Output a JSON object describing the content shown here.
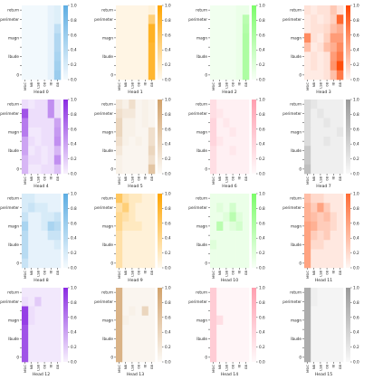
{
  "chart_data": {
    "type": "heatmap",
    "row_labels": [
      "return",
      "perimeter",
      "",
      "magn",
      "",
      "Ibude",
      "",
      "0"
    ],
    "col_labels": [
      "MSIC",
      "NB",
      "LSB",
      "0B",
      "IB",
      "GB"
    ],
    "colorbar_ticks": [
      "0.0",
      "0.2",
      "0.4",
      "0.6",
      "0.8",
      "1.0"
    ],
    "vmin": 0.0,
    "vmax": 1.0,
    "panels": [
      {
        "title": "Head 0",
        "color": "#5DADE2",
        "values": [
          [
            0.02,
            0.02,
            0.02,
            0.02,
            0.1,
            0.15
          ],
          [
            0.02,
            0.02,
            0.02,
            0.02,
            0.1,
            0.15
          ],
          [
            0.02,
            0.02,
            0.02,
            0.02,
            0.1,
            0.35
          ],
          [
            0.02,
            0.02,
            0.02,
            0.02,
            0.1,
            0.45
          ],
          [
            0.02,
            0.02,
            0.02,
            0.02,
            0.1,
            0.45
          ],
          [
            0.02,
            0.02,
            0.02,
            0.02,
            0.1,
            0.5
          ],
          [
            0.02,
            0.02,
            0.02,
            0.02,
            0.1,
            0.55
          ],
          [
            0.02,
            0.02,
            0.02,
            0.02,
            0.1,
            0.6
          ]
        ]
      },
      {
        "title": "Head 1",
        "color": "#FFA500",
        "values": [
          [
            0.05,
            0.05,
            0.05,
            0.05,
            0.05,
            0.1
          ],
          [
            0.05,
            0.05,
            0.05,
            0.05,
            0.05,
            0.5
          ],
          [
            0.05,
            0.05,
            0.05,
            0.05,
            0.05,
            0.85
          ],
          [
            0.05,
            0.05,
            0.05,
            0.05,
            0.05,
            0.85
          ],
          [
            0.05,
            0.05,
            0.05,
            0.05,
            0.05,
            0.8
          ],
          [
            0.05,
            0.05,
            0.05,
            0.05,
            0.05,
            0.8
          ],
          [
            0.05,
            0.05,
            0.05,
            0.05,
            0.05,
            0.8
          ],
          [
            0.05,
            0.05,
            0.05,
            0.05,
            0.05,
            0.8
          ]
        ]
      },
      {
        "title": "Head 2",
        "color": "#7CFC6A",
        "values": [
          [
            0.05,
            0.05,
            0.05,
            0.05,
            0.1,
            0.1
          ],
          [
            0.05,
            0.05,
            0.05,
            0.05,
            0.1,
            0.5
          ],
          [
            0.05,
            0.05,
            0.05,
            0.05,
            0.1,
            0.55
          ],
          [
            0.05,
            0.05,
            0.05,
            0.05,
            0.1,
            0.6
          ],
          [
            0.05,
            0.05,
            0.05,
            0.05,
            0.1,
            0.6
          ],
          [
            0.05,
            0.05,
            0.05,
            0.05,
            0.1,
            0.6
          ],
          [
            0.05,
            0.05,
            0.05,
            0.05,
            0.1,
            0.6
          ],
          [
            0.05,
            0.05,
            0.05,
            0.05,
            0.1,
            0.6
          ]
        ]
      },
      {
        "title": "Head 3",
        "color": "#FF4500",
        "values": [
          [
            0.1,
            0.05,
            0.1,
            0.1,
            0.25,
            0.1
          ],
          [
            0.05,
            0.1,
            0.05,
            0.1,
            0.2,
            0.8
          ],
          [
            0.05,
            0.1,
            0.1,
            0.15,
            0.3,
            0.4
          ],
          [
            0.6,
            0.1,
            0.05,
            0.2,
            0.5,
            0.5
          ],
          [
            0.3,
            0.05,
            0.1,
            0.3,
            0.4,
            0.6
          ],
          [
            0.05,
            0.1,
            0.05,
            0.1,
            0.5,
            0.7
          ],
          [
            0.05,
            0.1,
            0.05,
            0.1,
            0.55,
            0.95
          ],
          [
            0.05,
            0.05,
            0.05,
            0.1,
            0.3,
            0.7
          ]
        ]
      },
      {
        "title": "Head 4",
        "color": "#8A2BE2",
        "values": [
          [
            0.1,
            0.05,
            0.1,
            0.1,
            0.5,
            0.1
          ],
          [
            0.8,
            0.1,
            0.1,
            0.1,
            0.5,
            0.1
          ],
          [
            0.6,
            0.1,
            0.1,
            0.1,
            0.1,
            0.4
          ],
          [
            0.6,
            0.05,
            0.05,
            0.1,
            0.1,
            0.45
          ],
          [
            0.4,
            0.1,
            0.05,
            0.1,
            0.1,
            0.5
          ],
          [
            0.4,
            0.05,
            0.1,
            0.05,
            0.1,
            0.3
          ],
          [
            0.3,
            0.1,
            0.1,
            0.05,
            0.1,
            0.5
          ],
          [
            0.3,
            0.05,
            0.05,
            0.1,
            0.1,
            0.25
          ]
        ]
      },
      {
        "title": "Head 5",
        "color": "#D2A26B",
        "values": [
          [
            0.2,
            0.1,
            0.3,
            0.05,
            0.1,
            0.05
          ],
          [
            0.3,
            0.2,
            0.2,
            0.05,
            0.1,
            0.05
          ],
          [
            0.4,
            0.1,
            0.1,
            0.05,
            0.1,
            0.05
          ],
          [
            0.4,
            0.1,
            0.1,
            0.05,
            0.05,
            0.3
          ],
          [
            0.3,
            0.1,
            0.05,
            0.1,
            0.05,
            0.3
          ],
          [
            0.2,
            0.05,
            0.05,
            0.05,
            0.05,
            0.4
          ],
          [
            0.1,
            0.05,
            0.05,
            0.05,
            0.05,
            0.3
          ],
          [
            0.1,
            0.05,
            0.05,
            0.05,
            0.05,
            0.6
          ]
        ]
      },
      {
        "title": "Head 6",
        "color": "#FF9FB0",
        "values": [
          [
            0.3,
            0.1,
            0.1,
            0.1,
            0.1,
            0.1
          ],
          [
            0.3,
            0.2,
            0.1,
            0.1,
            0.1,
            0.1
          ],
          [
            0.4,
            0.1,
            0.2,
            0.1,
            0.1,
            0.1
          ],
          [
            0.4,
            0.1,
            0.1,
            0.2,
            0.1,
            0.1
          ],
          [
            0.4,
            0.2,
            0.1,
            0.1,
            0.1,
            0.1
          ],
          [
            0.3,
            0.1,
            0.1,
            0.2,
            0.1,
            0.1
          ],
          [
            0.3,
            0.1,
            0.1,
            0.1,
            0.1,
            0.1
          ],
          [
            0.3,
            0.1,
            0.1,
            0.1,
            0.1,
            0.1
          ]
        ]
      },
      {
        "title": "Head 7",
        "color": "#999999",
        "values": [
          [
            0.3,
            0.2,
            0.1,
            0.1,
            0.1,
            0.1
          ],
          [
            0.3,
            0.1,
            0.2,
            0.1,
            0.1,
            0.1
          ],
          [
            0.3,
            0.1,
            0.1,
            0.2,
            0.1,
            0.1
          ],
          [
            0.3,
            0.1,
            0.1,
            0.1,
            0.1,
            0.2
          ],
          [
            0.3,
            0.1,
            0.1,
            0.2,
            0.1,
            0.1
          ],
          [
            0.5,
            0.1,
            0.1,
            0.1,
            0.1,
            0.1
          ],
          [
            0.5,
            0.1,
            0.1,
            0.1,
            0.1,
            0.1
          ],
          [
            0.6,
            0.1,
            0.1,
            0.1,
            0.1,
            0.1
          ]
        ]
      },
      {
        "title": "Head 8",
        "color": "#5DADE2",
        "values": [
          [
            0.2,
            0.2,
            0.1,
            0.1,
            0.1,
            0.1
          ],
          [
            0.2,
            0.3,
            0.2,
            0.2,
            0.1,
            0.1
          ],
          [
            0.3,
            0.1,
            0.1,
            0.2,
            0.2,
            0.3
          ],
          [
            0.5,
            0.1,
            0.1,
            0.2,
            0.5,
            0.4
          ],
          [
            0.4,
            0.1,
            0.1,
            0.1,
            0.3,
            0.3
          ],
          [
            0.4,
            0.1,
            0.1,
            0.1,
            0.1,
            0.2
          ],
          [
            0.4,
            0.1,
            0.1,
            0.1,
            0.1,
            0.1
          ],
          [
            0.3,
            0.1,
            0.1,
            0.1,
            0.1,
            0.1
          ]
        ]
      },
      {
        "title": "Head 9",
        "color": "#FFA500",
        "values": [
          [
            0.6,
            0.3,
            0.2,
            0.2,
            0.1,
            0.1
          ],
          [
            0.3,
            0.5,
            0.2,
            0.1,
            0.1,
            0.1
          ],
          [
            0.4,
            0.3,
            0.2,
            0.1,
            0.1,
            0.1
          ],
          [
            0.4,
            0.2,
            0.2,
            0.2,
            0.1,
            0.1
          ],
          [
            0.3,
            0.1,
            0.1,
            0.1,
            0.1,
            0.1
          ],
          [
            0.3,
            0.1,
            0.1,
            0.1,
            0.1,
            0.1
          ],
          [
            0.3,
            0.1,
            0.1,
            0.1,
            0.1,
            0.1
          ],
          [
            0.3,
            0.1,
            0.1,
            0.1,
            0.1,
            0.1
          ]
        ]
      },
      {
        "title": "Head 10",
        "color": "#7CFC6A",
        "values": [
          [
            0.1,
            0.1,
            0.1,
            0.1,
            0.1,
            0.1
          ],
          [
            0.1,
            0.2,
            0.1,
            0.3,
            0.1,
            0.1
          ],
          [
            0.1,
            0.1,
            0.2,
            0.5,
            0.2,
            0.1
          ],
          [
            0.1,
            0.5,
            0.1,
            0.2,
            0.3,
            0.1
          ],
          [
            0.1,
            0.1,
            0.1,
            0.1,
            0.1,
            0.1
          ],
          [
            0.2,
            0.1,
            0.1,
            0.1,
            0.1,
            0.1
          ],
          [
            0.1,
            0.1,
            0.1,
            0.1,
            0.1,
            0.1
          ],
          [
            0.1,
            0.1,
            0.1,
            0.1,
            0.1,
            0.1
          ]
        ]
      },
      {
        "title": "Head 11",
        "color": "#FF6B35",
        "values": [
          [
            0.4,
            0.2,
            0.2,
            0.1,
            0.1,
            0.1
          ],
          [
            0.5,
            0.3,
            0.6,
            0.3,
            0.1,
            0.1
          ],
          [
            0.5,
            0.4,
            0.3,
            0.4,
            0.2,
            0.1
          ],
          [
            0.6,
            0.5,
            0.3,
            0.3,
            0.2,
            0.1
          ],
          [
            0.6,
            0.3,
            0.2,
            0.3,
            0.1,
            0.1
          ],
          [
            0.6,
            0.2,
            0.2,
            0.1,
            0.1,
            0.1
          ],
          [
            0.6,
            0.1,
            0.1,
            0.1,
            0.1,
            0.1
          ],
          [
            0.6,
            0.1,
            0.1,
            0.1,
            0.1,
            0.1
          ]
        ]
      },
      {
        "title": "Head 12",
        "color": "#8A2BE2",
        "values": [
          [
            0.05,
            0.05,
            0.05,
            0.05,
            0.05,
            0.05
          ],
          [
            0.1,
            0.05,
            0.2,
            0.05,
            0.05,
            0.05
          ],
          [
            0.9,
            0.1,
            0.05,
            0.05,
            0.05,
            0.05
          ],
          [
            0.9,
            0.1,
            0.05,
            0.05,
            0.05,
            0.05
          ],
          [
            0.8,
            0.05,
            0.05,
            0.05,
            0.05,
            0.05
          ],
          [
            0.8,
            0.05,
            0.05,
            0.05,
            0.05,
            0.05
          ],
          [
            0.8,
            0.05,
            0.05,
            0.05,
            0.05,
            0.05
          ],
          [
            0.8,
            0.05,
            0.05,
            0.05,
            0.05,
            0.05
          ]
        ]
      },
      {
        "title": "Head 13",
        "color": "#D2A26B",
        "values": [
          [
            0.8,
            0.05,
            0.05,
            0.05,
            0.05,
            0.05
          ],
          [
            0.8,
            0.05,
            0.05,
            0.05,
            0.05,
            0.05
          ],
          [
            0.8,
            0.05,
            0.1,
            0.05,
            0.4,
            0.05
          ],
          [
            0.8,
            0.1,
            0.05,
            0.05,
            0.05,
            0.05
          ],
          [
            0.8,
            0.05,
            0.05,
            0.05,
            0.05,
            0.05
          ],
          [
            0.8,
            0.05,
            0.05,
            0.05,
            0.05,
            0.05
          ],
          [
            0.8,
            0.05,
            0.05,
            0.05,
            0.05,
            0.05
          ],
          [
            0.8,
            0.05,
            0.05,
            0.05,
            0.05,
            0.05
          ]
        ]
      },
      {
        "title": "Head 14",
        "color": "#FF9FB0",
        "values": [
          [
            0.5,
            0.05,
            0.05,
            0.05,
            0.05,
            0.05
          ],
          [
            0.5,
            0.05,
            0.05,
            0.05,
            0.05,
            0.05
          ],
          [
            0.5,
            0.05,
            0.05,
            0.05,
            0.05,
            0.05
          ],
          [
            0.5,
            0.3,
            0.05,
            0.05,
            0.05,
            0.05
          ],
          [
            0.5,
            0.05,
            0.05,
            0.05,
            0.05,
            0.05
          ],
          [
            0.5,
            0.05,
            0.05,
            0.05,
            0.05,
            0.05
          ],
          [
            0.5,
            0.05,
            0.05,
            0.05,
            0.05,
            0.05
          ],
          [
            0.5,
            0.05,
            0.05,
            0.05,
            0.05,
            0.05
          ]
        ]
      },
      {
        "title": "Head 15",
        "color": "#999999",
        "values": [
          [
            0.8,
            0.1,
            0.05,
            0.05,
            0.05,
            0.05
          ],
          [
            0.8,
            0.1,
            0.05,
            0.05,
            0.05,
            0.05
          ],
          [
            0.8,
            0.05,
            0.05,
            0.05,
            0.05,
            0.05
          ],
          [
            0.8,
            0.05,
            0.05,
            0.05,
            0.05,
            0.05
          ],
          [
            0.8,
            0.05,
            0.05,
            0.05,
            0.05,
            0.05
          ],
          [
            0.8,
            0.05,
            0.05,
            0.05,
            0.05,
            0.05
          ],
          [
            0.8,
            0.05,
            0.05,
            0.05,
            0.05,
            0.05
          ],
          [
            0.8,
            0.05,
            0.05,
            0.05,
            0.05,
            0.05
          ]
        ]
      }
    ]
  }
}
